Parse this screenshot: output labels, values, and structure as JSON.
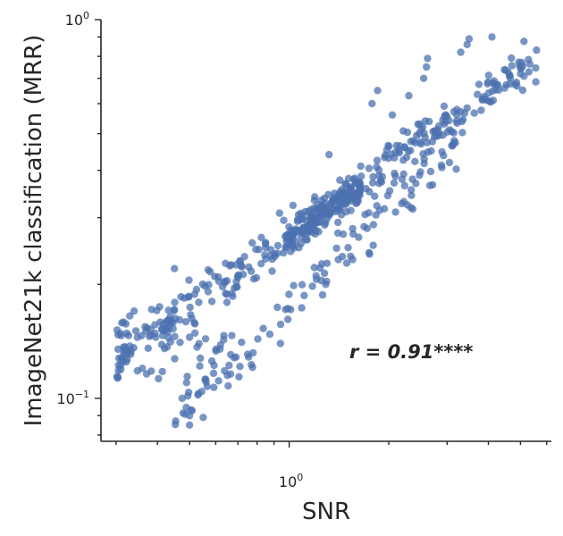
{
  "chart_data": {
    "type": "scatter",
    "xlabel": "SNR",
    "ylabel": "ImageNet21k classification (MRR)",
    "xscale": "log",
    "yscale": "log",
    "xlim": [
      0.27,
      6.2
    ],
    "ylim": [
      0.077,
      1.0
    ],
    "x_tick_labels": [
      {
        "value": 1,
        "base": "10",
        "exp": "0"
      }
    ],
    "y_tick_labels": [
      {
        "value": 1,
        "base": "10",
        "exp": "0"
      },
      {
        "value": 0.1,
        "base": "10",
        "exp": "−1"
      }
    ],
    "annotation": "r = 0.91****",
    "grid": false,
    "color": "#4c72b0",
    "points": []
  }
}
